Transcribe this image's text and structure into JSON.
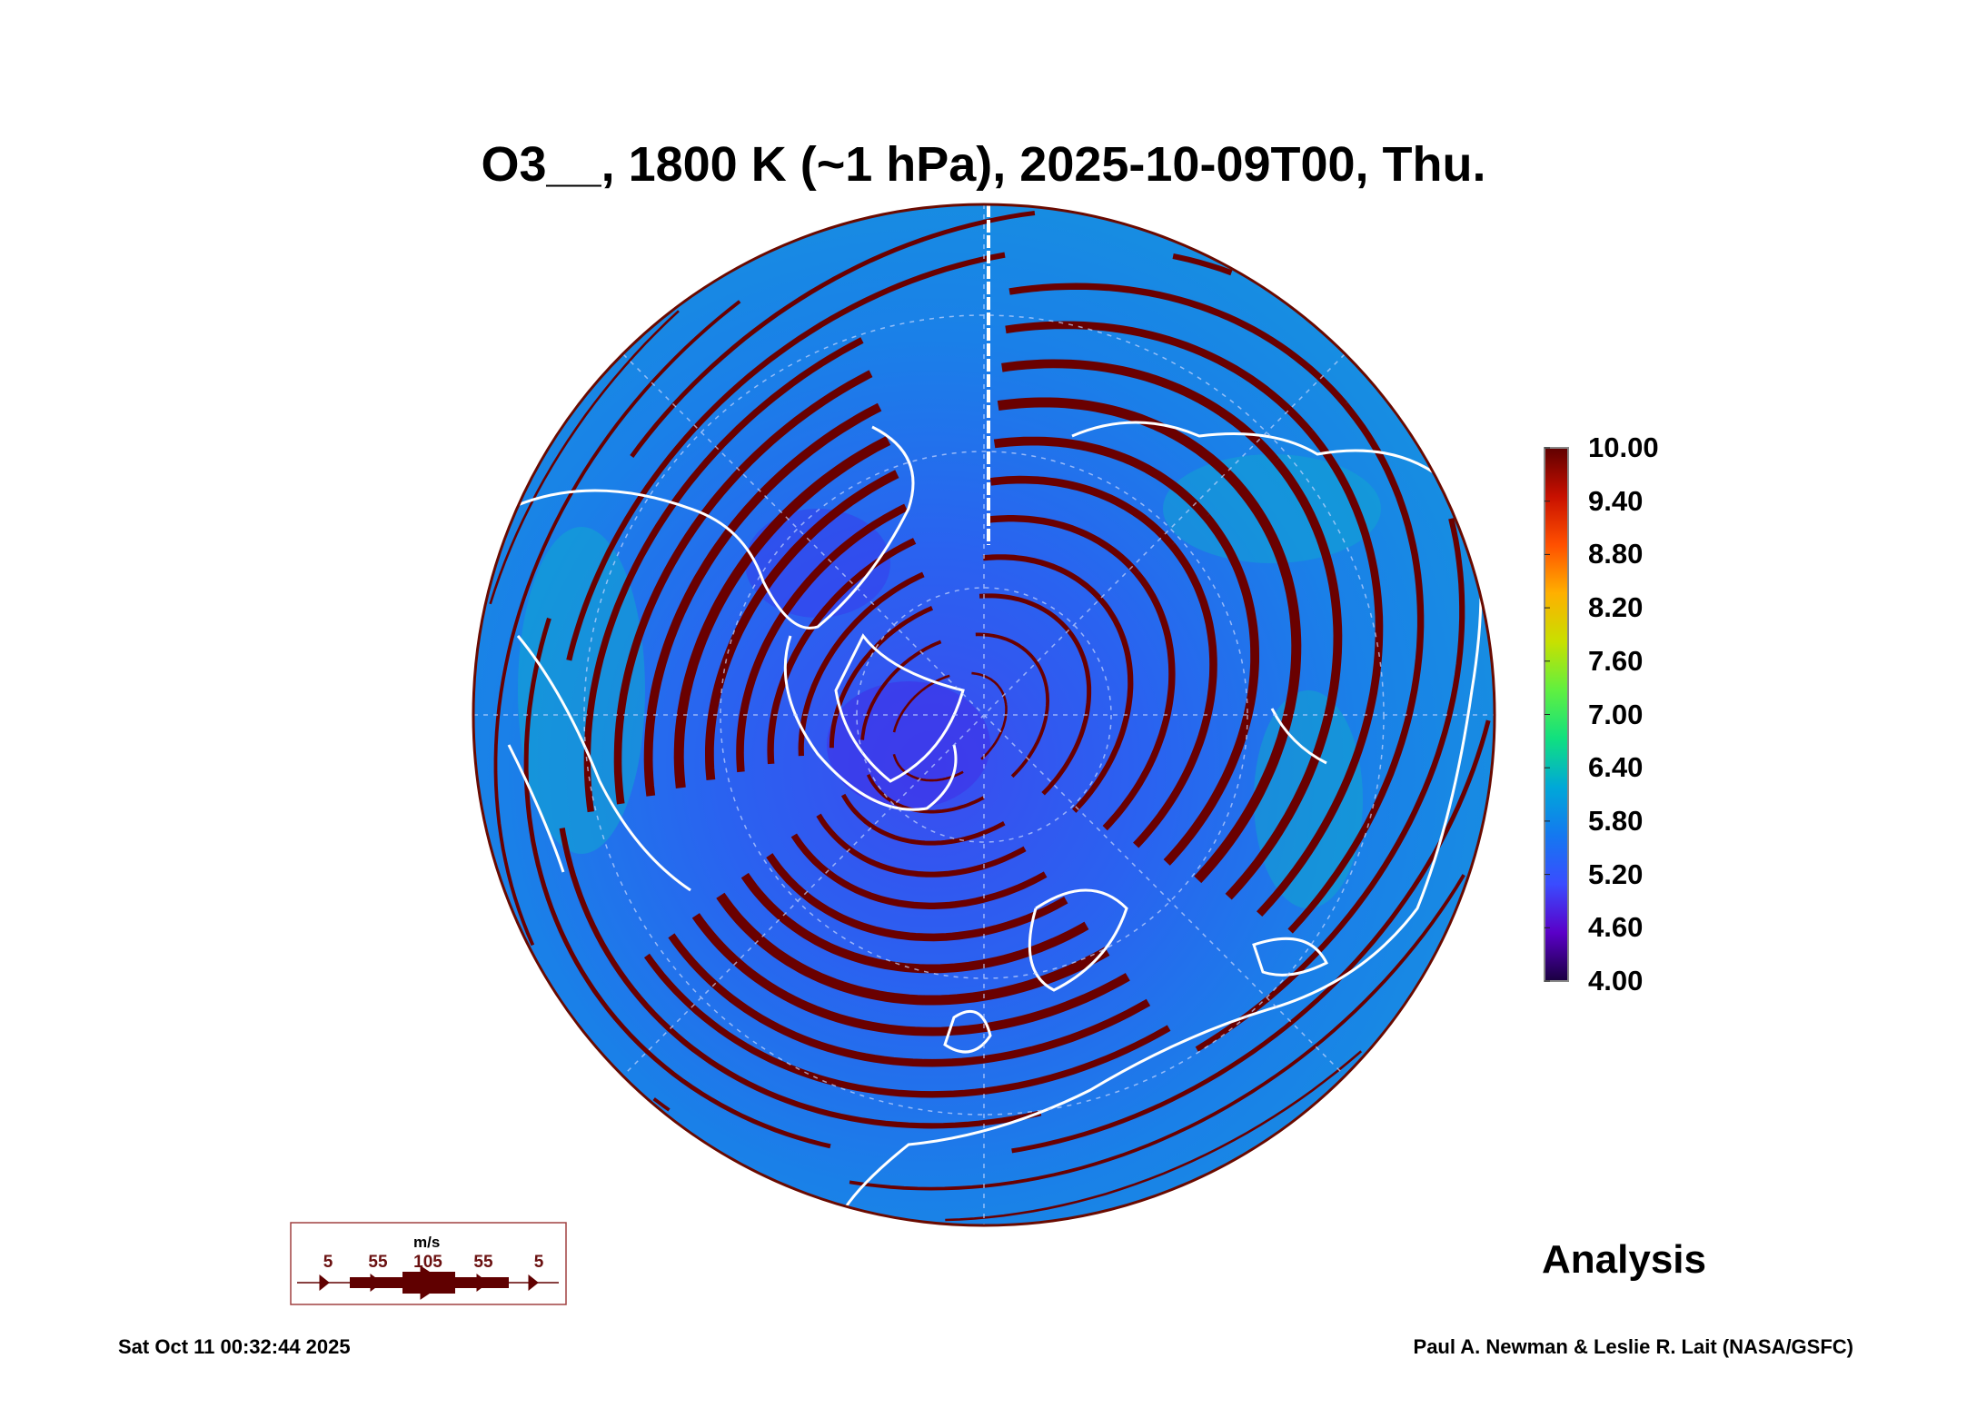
{
  "chart_data": {
    "type": "heatmap",
    "title": "O3__, 1800 K (~1 hPa), 2025-10-09T00, Thu.",
    "projection": "north polar stereographic",
    "field": "O3 mixing ratio",
    "colorbar": {
      "ticks": [
        "10.00",
        "9.40",
        "8.80",
        "8.20",
        "7.60",
        "7.00",
        "6.40",
        "5.80",
        "5.20",
        "4.60",
        "4.00"
      ],
      "range": [
        4.0,
        10.0
      ],
      "colors": [
        "#1a0040",
        "#5a00c8",
        "#3a4cff",
        "#1478f0",
        "#00a8d8",
        "#10e080",
        "#60f040",
        "#c8e000",
        "#ffb000",
        "#ff5000",
        "#c81000",
        "#600000"
      ]
    },
    "observed_range": [
      4.6,
      6.4
    ],
    "vortex_low_value": 4.8,
    "wind_legend": {
      "unit": "m/s",
      "values": [
        "5",
        "55",
        "105",
        "55",
        "5"
      ]
    },
    "label": "Analysis",
    "footer_left": "Sat Oct 11 00:32:44 2025",
    "footer_right": "Paul A. Newman & Leslie R. Lait (NASA/GSFC)"
  }
}
